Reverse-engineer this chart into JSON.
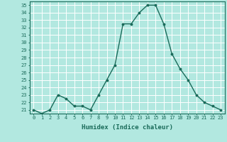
{
  "x": [
    0,
    1,
    2,
    3,
    4,
    5,
    6,
    7,
    8,
    9,
    10,
    11,
    12,
    13,
    14,
    15,
    16,
    17,
    18,
    19,
    20,
    21,
    22,
    23
  ],
  "y": [
    21,
    20.5,
    21,
    23,
    22.5,
    21.5,
    21.5,
    21,
    23,
    25,
    27,
    32.5,
    32.5,
    34,
    35,
    35,
    32.5,
    28.5,
    26.5,
    25,
    23,
    22,
    21.5,
    21
  ],
  "line_color": "#1a6b5a",
  "marker": "o",
  "marker_size": 1.8,
  "bg_color": "#b2e8e0",
  "grid_color": "#ffffff",
  "xlabel": "Humidex (Indice chaleur)",
  "ylabel": "",
  "xlim": [
    -0.5,
    23.5
  ],
  "ylim": [
    20.5,
    35.5
  ],
  "yticks": [
    21,
    22,
    23,
    24,
    25,
    26,
    27,
    28,
    29,
    30,
    31,
    32,
    33,
    34,
    35
  ],
  "xticks": [
    0,
    1,
    2,
    3,
    4,
    5,
    6,
    7,
    8,
    9,
    10,
    11,
    12,
    13,
    14,
    15,
    16,
    17,
    18,
    19,
    20,
    21,
    22,
    23
  ],
  "tick_label_fontsize": 5.0,
  "xlabel_fontsize": 6.5,
  "line_width": 1.0,
  "tick_color": "#1a6b5a",
  "axis_color": "#1a6b5a"
}
